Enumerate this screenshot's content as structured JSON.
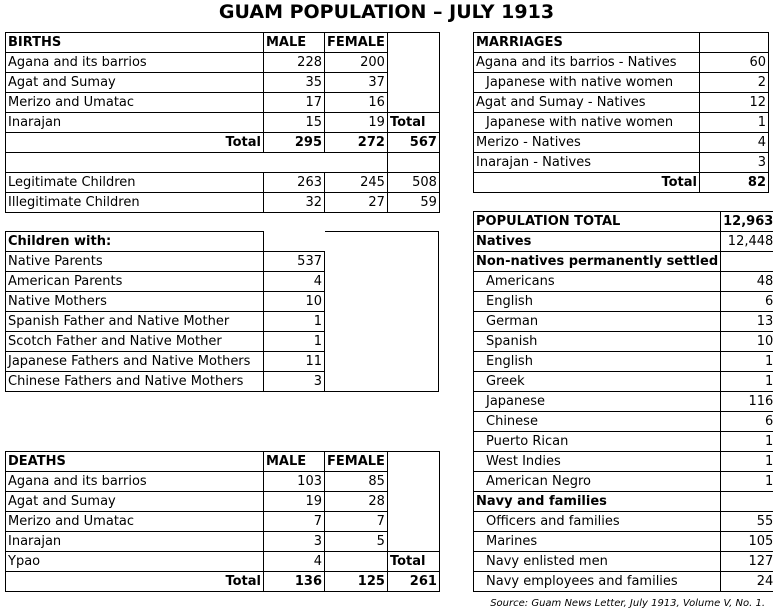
{
  "title": "GUAM POPULATION – JULY 1913",
  "births": {
    "header": "BIRTHS",
    "col_male": "MALE",
    "col_female": "FEMALE",
    "rows": [
      {
        "label": "Agana and its barrios",
        "male": "228",
        "female": "200"
      },
      {
        "label": "Agat and Sumay",
        "male": "35",
        "female": "37"
      },
      {
        "label": "Merizo and Umatac",
        "male": "17",
        "female": "16"
      },
      {
        "label": "Inarajan",
        "male": "15",
        "female": "19"
      }
    ],
    "total_col_label": "Total",
    "total_label": "Total",
    "total_male": "295",
    "total_female": "272",
    "total_all": "567",
    "legit": [
      {
        "label": "Legitimate Children",
        "male": "263",
        "female": "245",
        "total": "508"
      },
      {
        "label": "Illegitimate Children",
        "male": "32",
        "female": "27",
        "total": "59"
      }
    ]
  },
  "children": {
    "header": "Children with:",
    "rows": [
      {
        "label": "Native Parents",
        "value": "537"
      },
      {
        "label": "American Parents",
        "value": "4"
      },
      {
        "label": "Native Mothers",
        "value": "10"
      },
      {
        "label": "Spanish Father and Native Mother",
        "value": "1"
      },
      {
        "label": "Scotch Father and Native Mother",
        "value": "1"
      },
      {
        "label": "Japanese Fathers and Native Mothers",
        "value": "11"
      },
      {
        "label": "Chinese Fathers and Native Mothers",
        "value": "3"
      }
    ]
  },
  "deaths": {
    "header": "DEATHS",
    "col_male": "MALE",
    "col_female": "FEMALE",
    "rows": [
      {
        "label": "Agana and its barrios",
        "male": "103",
        "female": "85"
      },
      {
        "label": "Agat and Sumay",
        "male": "19",
        "female": "28"
      },
      {
        "label": "Merizo and Umatac",
        "male": "7",
        "female": "7"
      },
      {
        "label": "Inarajan",
        "male": "3",
        "female": "5"
      },
      {
        "label": "Ypao",
        "male": "4",
        "female": ""
      }
    ],
    "total_col_label": "Total",
    "total_label": "Total",
    "total_male": "136",
    "total_female": "125",
    "total_all": "261"
  },
  "marriages": {
    "header": "MARRIAGES",
    "rows": [
      {
        "label": "Agana and its barrios - Natives",
        "value": "60",
        "indent": false
      },
      {
        "label": "Japanese with native women",
        "value": "2",
        "indent": true
      },
      {
        "label": "Agat and Sumay - Natives",
        "value": "12",
        "indent": false
      },
      {
        "label": "Japanese with native women",
        "value": "1",
        "indent": true
      },
      {
        "label": "Merizo - Natives",
        "value": "4",
        "indent": false
      },
      {
        "label": "Inarajan - Natives",
        "value": "3",
        "indent": false
      }
    ],
    "total_label": "Total",
    "total": "82"
  },
  "population": {
    "header": "POPULATION TOTAL",
    "total": "12,963",
    "natives_label": "Natives",
    "natives": "12,448",
    "nonnatives_label": "Non-natives permanently settled",
    "nonnatives": [
      {
        "label": "Americans",
        "value": "48"
      },
      {
        "label": "English",
        "value": "6"
      },
      {
        "label": "German",
        "value": "13"
      },
      {
        "label": "Spanish",
        "value": "10"
      },
      {
        "label": "English",
        "value": "1"
      },
      {
        "label": "Greek",
        "value": "1"
      },
      {
        "label": "Japanese",
        "value": "116"
      },
      {
        "label": "Chinese",
        "value": "6"
      },
      {
        "label": "Puerto Rican",
        "value": "1"
      },
      {
        "label": "West Indies",
        "value": "1"
      },
      {
        "label": "American Negro",
        "value": "1"
      }
    ],
    "navy_label": "Navy and families",
    "navy": [
      {
        "label": "Officers and families",
        "value": "55"
      },
      {
        "label": "Marines",
        "value": "105"
      },
      {
        "label": "Navy enlisted men",
        "value": "127"
      },
      {
        "label": "Navy employees and families",
        "value": "24"
      }
    ]
  },
  "source": "Source: Guam News Letter, July 1913, Volume V, No. 1."
}
